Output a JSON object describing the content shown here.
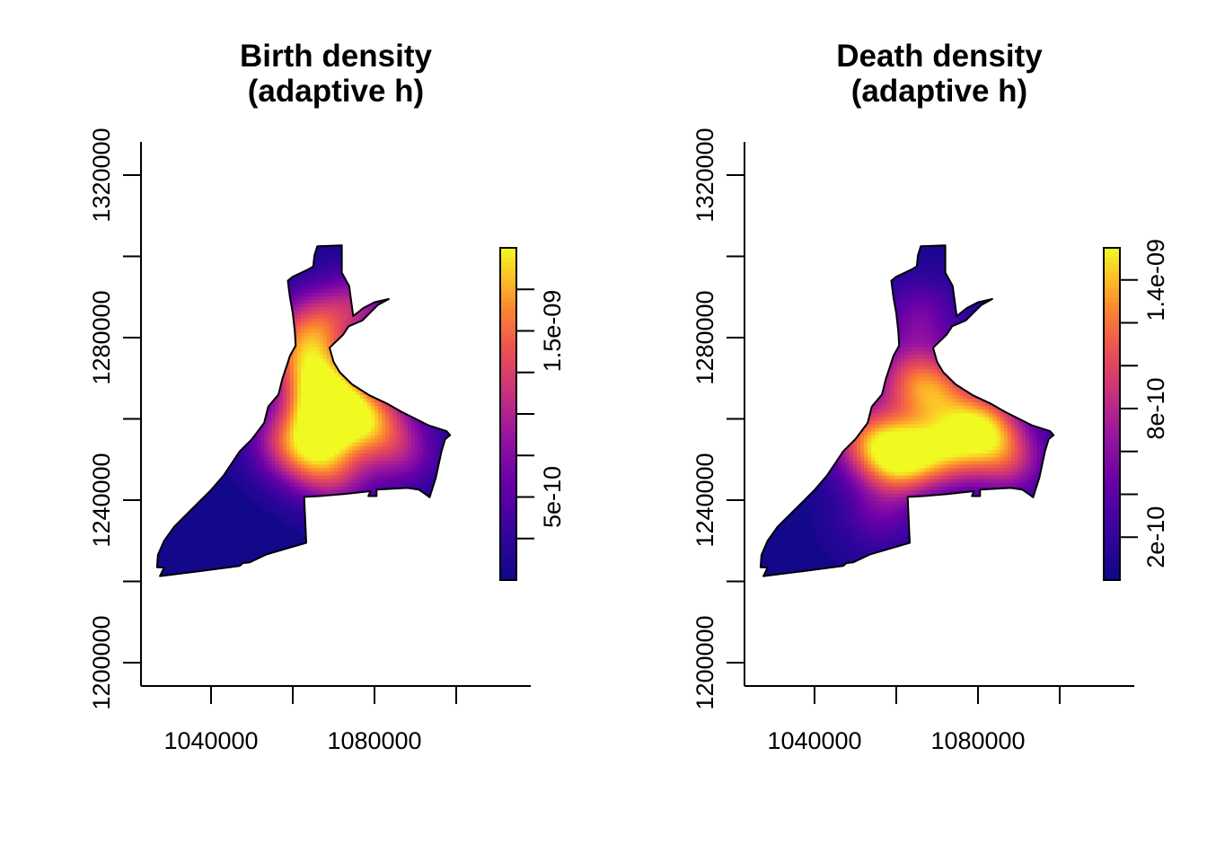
{
  "chart_data": [
    {
      "type": "heatmap",
      "title": "Birth density\n(adaptive h)",
      "x_ticks": [
        1040000,
        1060000,
        1080000,
        1100000
      ],
      "x_tick_labels": [
        "1040000",
        "",
        "1080000",
        ""
      ],
      "y_ticks": [
        1200000,
        1220000,
        1240000,
        1260000,
        1280000,
        1300000,
        1320000
      ],
      "y_tick_labels": [
        "1200000",
        "",
        "1240000",
        "",
        "1280000",
        "",
        "1320000"
      ],
      "xlim": [
        1023000,
        1118000
      ],
      "ylim": [
        1194000,
        1328000
      ],
      "colorbar": {
        "range": [
          0,
          2e-09
        ],
        "ticks": [
          2.5e-10,
          5e-10,
          7.5e-10,
          1e-09,
          1.25e-09,
          1.5e-09,
          1.75e-09
        ],
        "tick_labels": [
          "",
          "5e-10",
          "",
          "",
          "",
          "1.5e-09",
          ""
        ]
      },
      "density_peaks": [
        {
          "x": 1069000,
          "y": 1263000,
          "value": 2e-09
        },
        {
          "x": 1079000,
          "y": 1260000,
          "value": 1.45e-09
        },
        {
          "x": 1066000,
          "y": 1271000,
          "value": 1.1e-09
        },
        {
          "x": 1065000,
          "y": 1283000,
          "value": 1.15e-09
        },
        {
          "x": 1065000,
          "y": 1252000,
          "value": 1.2e-09
        },
        {
          "x": 1076000,
          "y": 1288000,
          "value": 9e-10
        },
        {
          "x": 1058000,
          "y": 1255000,
          "value": 9e-10
        },
        {
          "x": 1087000,
          "y": 1252000,
          "value": 8e-10
        },
        {
          "x": 1071000,
          "y": 1246000,
          "value": 8e-10
        },
        {
          "x": 1060000,
          "y": 1276000,
          "value": 7e-10
        }
      ]
    },
    {
      "type": "heatmap",
      "title": "Death density\n(adaptive h)",
      "x_ticks": [
        1040000,
        1060000,
        1080000,
        1100000
      ],
      "x_tick_labels": [
        "1040000",
        "",
        "1080000",
        ""
      ],
      "y_ticks": [
        1200000,
        1220000,
        1240000,
        1260000,
        1280000,
        1300000,
        1320000
      ],
      "y_tick_labels": [
        "1200000",
        "",
        "1240000",
        "",
        "1280000",
        "",
        "1320000"
      ],
      "xlim": [
        1023000,
        1118000
      ],
      "ylim": [
        1194000,
        1328000
      ],
      "colorbar": {
        "range": [
          0,
          1.55e-09
        ],
        "ticks": [
          2e-10,
          4e-10,
          6e-10,
          8e-10,
          1e-09,
          1.2e-09,
          1.4e-09
        ],
        "tick_labels": [
          "2e-10",
          "",
          "",
          "8e-10",
          "",
          "",
          "1.4e-09"
        ]
      },
      "density_peaks": [
        {
          "x": 1061000,
          "y": 1251000,
          "value": 1.55e-09
        },
        {
          "x": 1081000,
          "y": 1258000,
          "value": 1.35e-09
        },
        {
          "x": 1070000,
          "y": 1267000,
          "value": 1e-09
        },
        {
          "x": 1072000,
          "y": 1252000,
          "value": 1e-09
        },
        {
          "x": 1052000,
          "y": 1255000,
          "value": 9e-10
        },
        {
          "x": 1062000,
          "y": 1270000,
          "value": 7e-10
        },
        {
          "x": 1088000,
          "y": 1250000,
          "value": 8e-10
        },
        {
          "x": 1066000,
          "y": 1285000,
          "value": 5e-10
        },
        {
          "x": 1056000,
          "y": 1237000,
          "value": 4e-10
        }
      ]
    }
  ]
}
